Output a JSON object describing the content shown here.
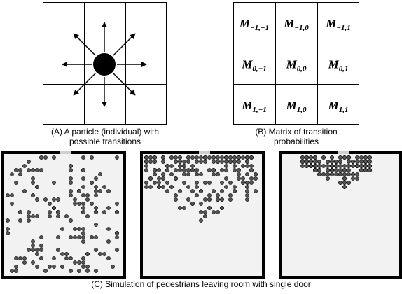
{
  "panels": {
    "a": {
      "caption_line1": "(A) A particle (individual) with",
      "caption_line2": "possible transitions"
    },
    "b": {
      "caption_line1": "(B) Matrix of transition",
      "caption_line2": "probabilities",
      "matrix": [
        [
          {
            "base": "M",
            "sub": "−1,−1"
          },
          {
            "base": "M",
            "sub": "−1,0"
          },
          {
            "base": "M",
            "sub": "−1,1"
          }
        ],
        [
          {
            "base": "M",
            "sub": "0,−1"
          },
          {
            "base": "M",
            "sub": "0,0"
          },
          {
            "base": "M",
            "sub": "0,1"
          }
        ],
        [
          {
            "base": "M",
            "sub": "1,−1"
          },
          {
            "base": "M",
            "sub": "1,0"
          },
          {
            "base": "M",
            "sub": "1,1"
          }
        ]
      ]
    },
    "c": {
      "caption": "(C) Simulation of pedestrians leaving room with single door"
    }
  },
  "colors": {
    "particle": "#000000",
    "room_fill": "#f2f2f2",
    "pedestrian": "#555555"
  }
}
